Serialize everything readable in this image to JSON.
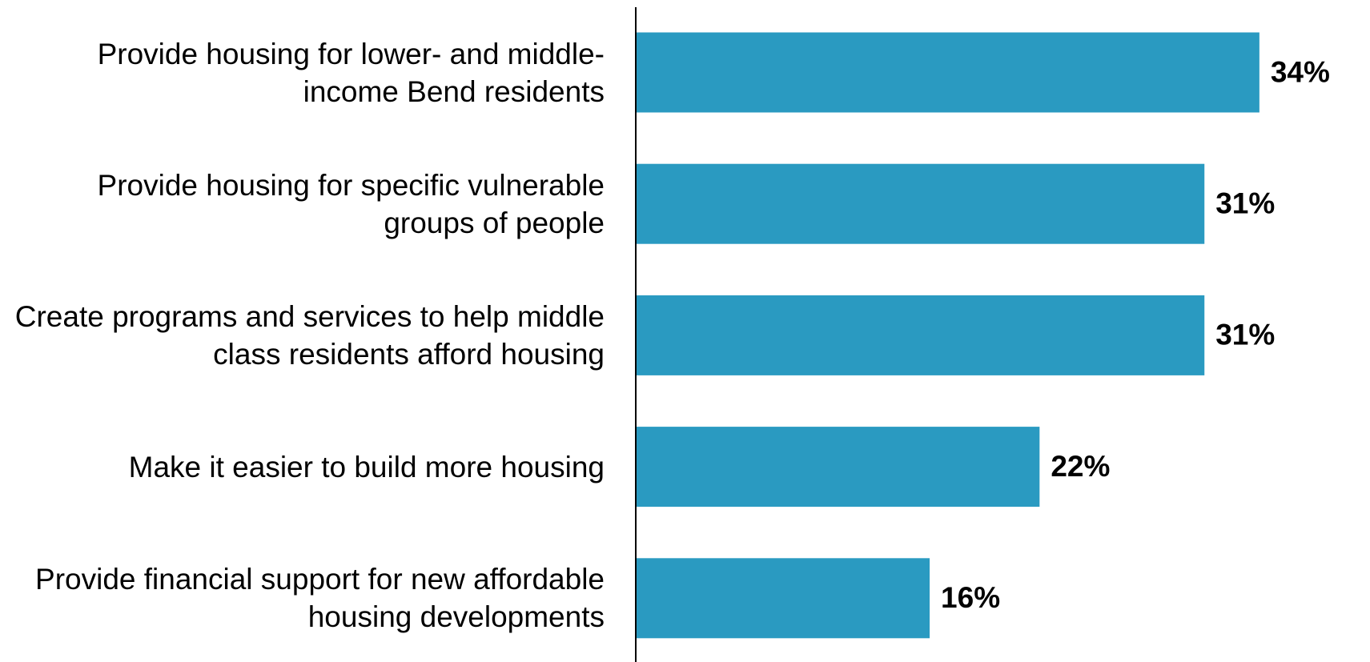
{
  "chart_data": {
    "type": "bar",
    "orientation": "horizontal",
    "categories": [
      "Provide housing for lower- and middle-income Bend residents",
      "Provide housing for specific vulnerable groups of people",
      "Create programs and services to help middle class residents afford housing",
      "Make it easier to build more housing",
      "Provide financial support for new affordable housing developments"
    ],
    "values": [
      34,
      31,
      31,
      22,
      16
    ],
    "value_labels": [
      "34%",
      "31%",
      "31%",
      "22%",
      "16%"
    ],
    "color": "#2a9ac1"
  }
}
